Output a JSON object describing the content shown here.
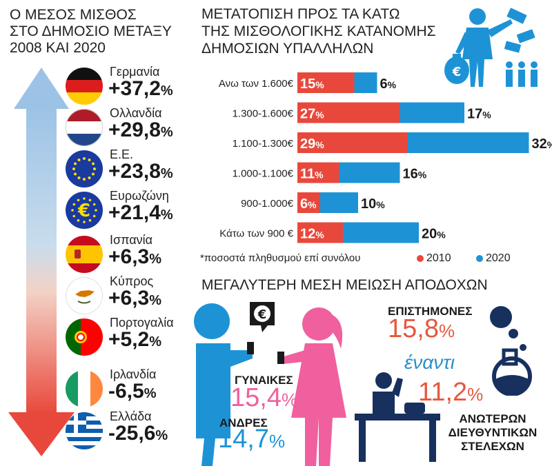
{
  "left": {
    "title_lines": [
      "Ο ΜΕΣΟΣ ΜΙΣΘΟΣ",
      "ΣΤΟ ΔΗΜΟΣΙΟ ΜΕΤΑΞΥ",
      "2008 ΚΑΙ 2020"
    ],
    "countries": [
      {
        "name": "Γερμανία",
        "value": "+37,2",
        "flag": "germany-flag-icon"
      },
      {
        "name": "Ολλανδία",
        "value": "+29,8",
        "flag": "netherlands-flag-icon"
      },
      {
        "name": "Ε.Ε.",
        "value": "+23,8",
        "flag": "eu-flag-icon"
      },
      {
        "name": "Ευρωζώνη",
        "value": "+21,4",
        "flag": "eurozone-flag-icon"
      },
      {
        "name": "Ισπανία",
        "value": "+6,3",
        "flag": "spain-flag-icon"
      },
      {
        "name": "Κύπρος",
        "value": "+6,3",
        "flag": "cyprus-flag-icon"
      },
      {
        "name": "Πορτογαλία",
        "value": "+5,2",
        "flag": "portugal-flag-icon"
      },
      {
        "name": "Ιρλανδία",
        "value": "-6,5",
        "flag": "ireland-flag-icon"
      },
      {
        "name": "Ελλάδα",
        "value": "-25,6",
        "flag": "greece-flag-icon"
      }
    ],
    "percent_sign": "%"
  },
  "right": {
    "title_lines": [
      "ΜΕΤΑΤΟΠΙΣΗ ΠΡΟΣ ΤΑ ΚΑΤΩ",
      "ΤΗΣ ΜΙΣΘΟΛΟΓΙΚΗΣ ΚΑΤΑΝΟΜΗΣ",
      "ΔΗΜΟΣΙΩΝ ΥΠΑΛΛΗΛΩΝ"
    ],
    "note": "*ποσοστά πληθυσμού επί συνόλου",
    "euro_symbol": "€"
  },
  "chart_data": {
    "type": "bar",
    "categories": [
      "Ανω των 1.600€",
      "1.300-1.600€",
      "1.100-1.300€",
      "1.000-1.100€",
      "900-1.000€",
      "Κάτω των 900 €"
    ],
    "series": [
      {
        "name": "2010",
        "values": [
          15,
          27,
          29,
          11,
          6,
          12
        ],
        "color": "#e8483b"
      },
      {
        "name": "2020",
        "values": [
          6,
          17,
          32,
          16,
          10,
          20
        ],
        "color": "#1d93d6"
      }
    ],
    "stacked": true,
    "title": "ΜΕΤΑΤΟΠΙΣΗ ΠΡΟΣ ΤΑ ΚΑΤΩ ΤΗΣ ΜΙΣΘΟΛΟΓΙΚΗΣ ΚΑΤΑΝΟΜΗΣ ΔΗΜΟΣΙΩΝ ΥΠΑΛΛΗΛΩΝ",
    "unit": "%",
    "legend": "bottom-right"
  },
  "reductions": {
    "title": "ΜΕΓΑΛΥΤΕΡΗ ΜΕΣΗ  ΜΕΙΩΣΗ ΑΠΟΔΟΧΩΝ",
    "women_label": "ΓΥΝΑΙΚΕΣ",
    "women_value": "15,4",
    "men_label": "ΑΝΔΡΕΣ",
    "men_value": "14,7",
    "scientists_label": "ΕΠΙΣΤΗΜΟΝΕΣ",
    "scientists_value": "15,8",
    "versus": "έναντι",
    "executives_value": "11,2",
    "executives_lines": [
      "ΑΝΩΤΕΡΩΝ",
      "ΔΙΕΥΘΥΝΤΙΚΩΝ",
      "ΣΤΕΛΕΧΩΝ"
    ],
    "percent_sign": "%"
  },
  "colors": {
    "red": "#e8483b",
    "blue": "#1d93d6",
    "pink": "#f0609e",
    "navy": "#17305e",
    "orange": "#e5583f"
  }
}
